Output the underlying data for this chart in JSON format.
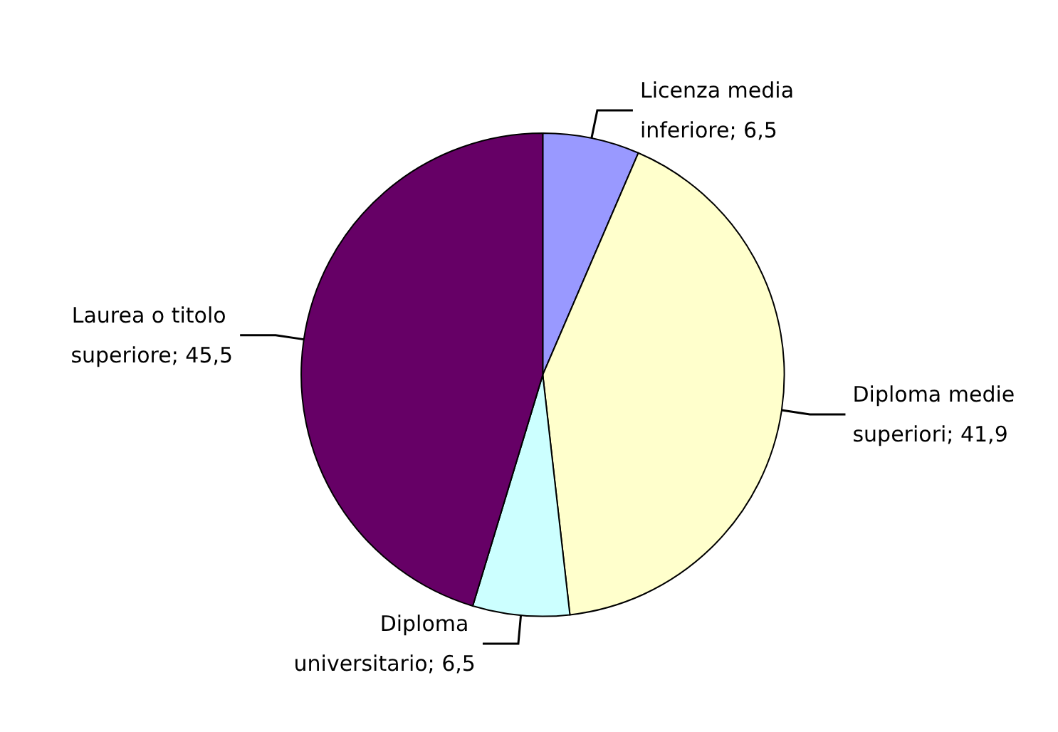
{
  "chart_data": {
    "type": "pie",
    "categories": [
      "Licenza media inferiore",
      "Diploma medie superiori",
      "Diploma universitario",
      "Laurea o titolo superiore"
    ],
    "values": [
      6.5,
      41.9,
      6.5,
      45.5
    ],
    "value_labels": [
      "6,5",
      "41,9",
      "6,5",
      "45,5"
    ],
    "colors": [
      "#9999ff",
      "#ffffcc",
      "#ccffff",
      "#660066"
    ],
    "legend": false
  }
}
